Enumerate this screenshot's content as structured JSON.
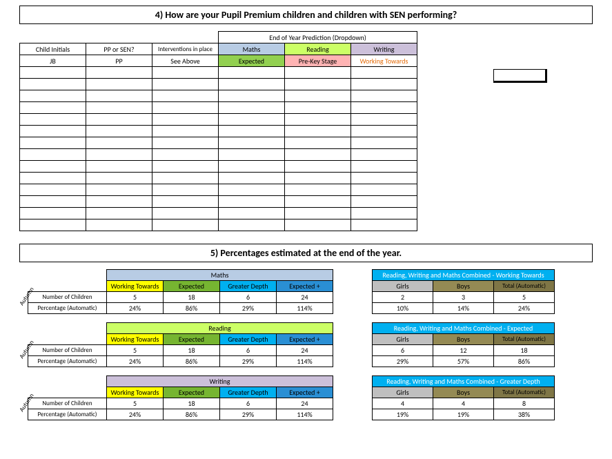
{
  "colors": {
    "maths_hdr": "#b8cce4",
    "reading_hdr": "#ccff66",
    "writing_hdr": "#ccc0da",
    "wt_yellow": "#ffff00",
    "expected": "#76b531",
    "gdepth": "#00b0f0",
    "expplus": "#2a8fd4",
    "girls": "#bfbfbf",
    "boys": "#948a54",
    "total": "#7f7646",
    "combined_title": "#00b0f0",
    "cell_exp_green": "#92d050",
    "cell_prekey_pink": "#ffb3b3",
    "wt_orange_text": "#e46c0a"
  },
  "section4": {
    "title": "4) How are your Pupil Premium children and children with SEN performing?",
    "pred_hdr": "End of Year Prediction (Dropdown)",
    "cols": {
      "initials": "Child Initials",
      "ppsen": "PP or SEN?",
      "interv": "Interventions in place",
      "maths": "Maths",
      "reading": "Reading",
      "writing": "Writing"
    },
    "row1": {
      "initials": "JB",
      "ppsen": "PP",
      "interv": "See Above",
      "maths": "Expected",
      "reading": "Pre-Key Stage",
      "writing": "Working Towards"
    },
    "empty_rows": 14
  },
  "section5": {
    "title": "5) Percentages estimated at the end of the year.",
    "term_label": "Autumn",
    "row_labels": {
      "num": "Number of Children",
      "pct": "Percentage (Automatic)"
    },
    "col_labels": {
      "wt": "Working Towards",
      "exp": "Expected",
      "gd": "Greater Depth",
      "ep": "Expected +"
    },
    "subjects": [
      {
        "name": "Maths",
        "hdr_color": "#b8cce4",
        "num": [
          "5",
          "18",
          "6",
          "24"
        ],
        "pct": [
          "24%",
          "86%",
          "29%",
          "114%"
        ]
      },
      {
        "name": "Reading",
        "hdr_color": "#ccff66",
        "num": [
          "5",
          "18",
          "6",
          "24"
        ],
        "pct": [
          "24%",
          "86%",
          "29%",
          "114%"
        ]
      },
      {
        "name": "Writing",
        "hdr_color": "#ccc0da",
        "num": [
          "5",
          "18",
          "6",
          "24"
        ],
        "pct": [
          "24%",
          "86%",
          "29%",
          "114%"
        ]
      }
    ],
    "combined_cols": {
      "girls": "Girls",
      "boys": "Boys",
      "total": "Total (Automatic)"
    },
    "combined": [
      {
        "title": "Reading, Writing and Maths Combined - Working Towards",
        "num": [
          "2",
          "3",
          "5"
        ],
        "pct": [
          "10%",
          "14%",
          "24%"
        ]
      },
      {
        "title": "Reading, Writing and Maths Combined - Expected",
        "num": [
          "6",
          "12",
          "18"
        ],
        "pct": [
          "29%",
          "57%",
          "86%"
        ]
      },
      {
        "title": "Reading, Writing and Maths Combined - Greater Depth",
        "num": [
          "4",
          "4",
          "8"
        ],
        "pct": [
          "19%",
          "19%",
          "38%"
        ]
      }
    ]
  }
}
